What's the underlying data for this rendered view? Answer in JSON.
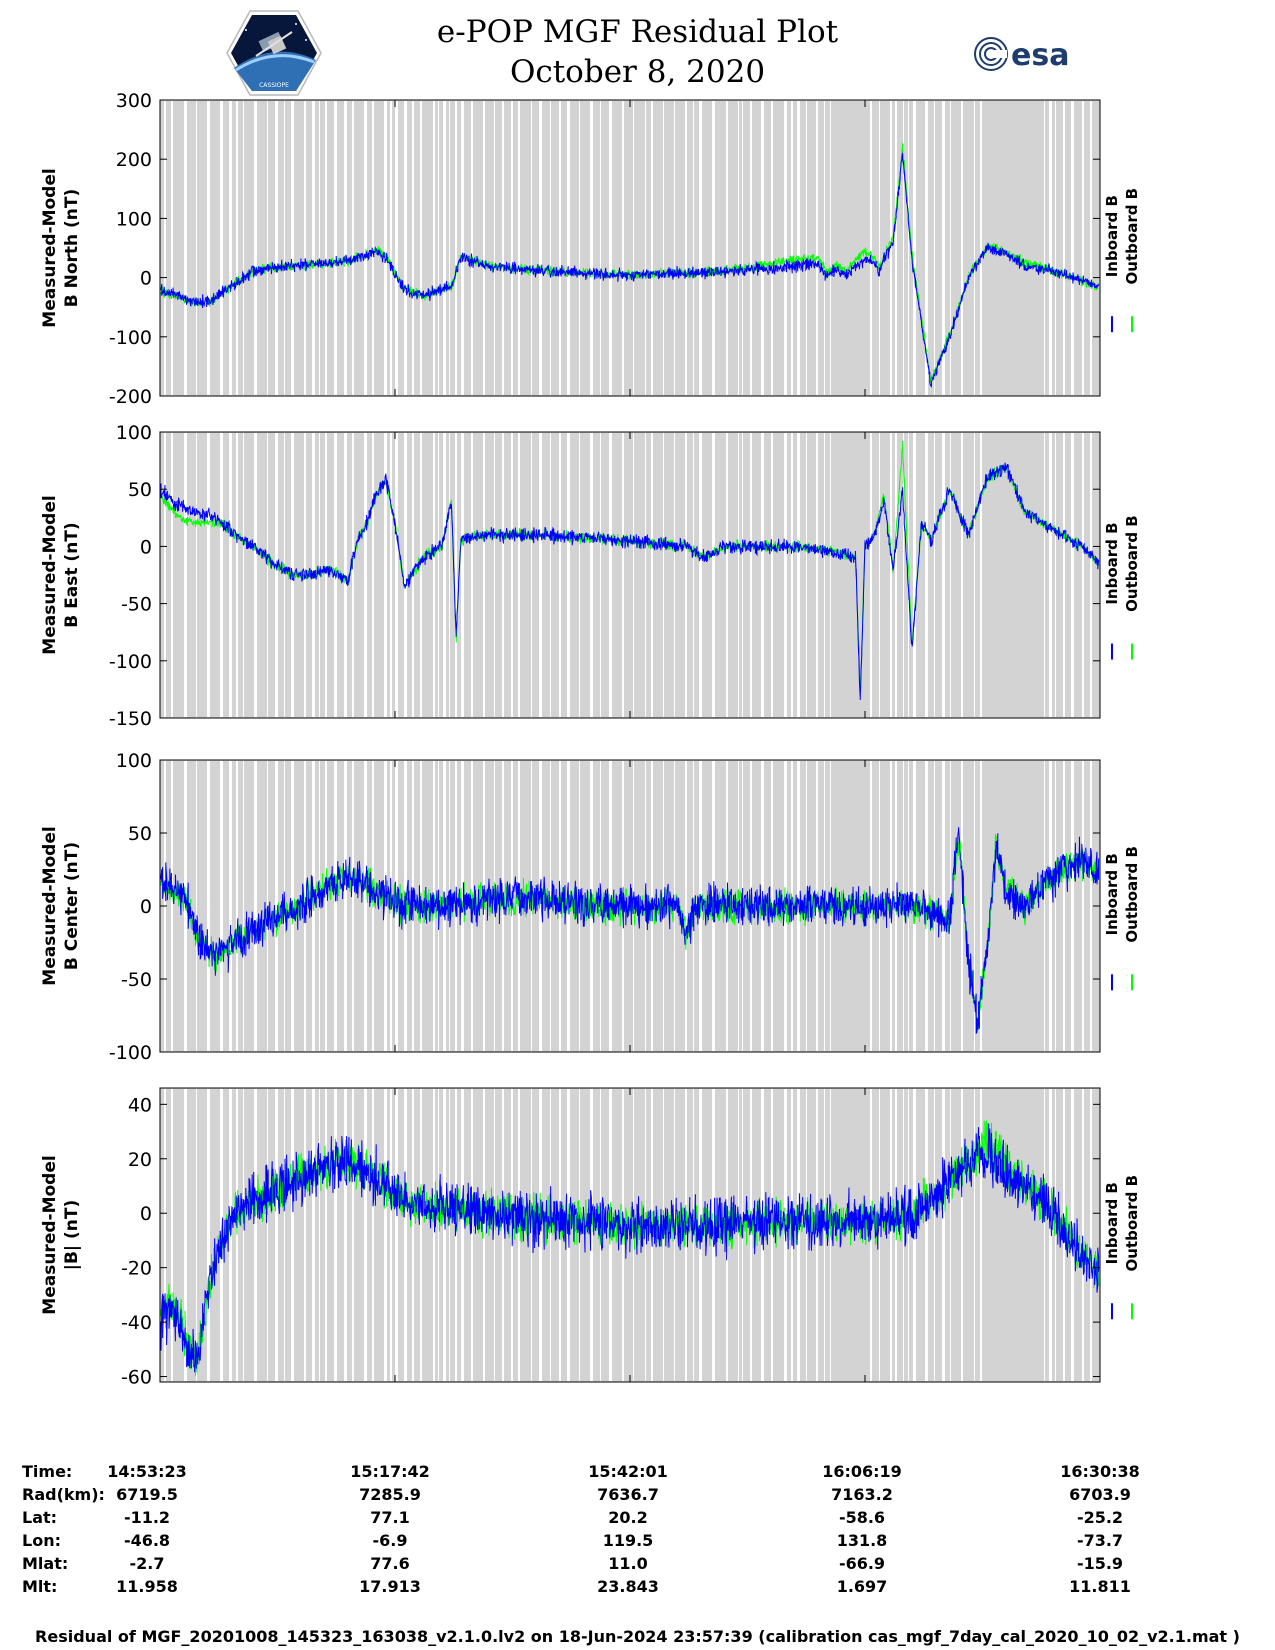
{
  "header": {
    "title_line1": "e-POP MGF Residual Plot",
    "title_line2": "October 8, 2020",
    "mission_logo_text": "CASSIOPE",
    "esa_logo_text": "esa"
  },
  "chart_data": [
    {
      "type": "line",
      "ylabel_line1": "Measured-Model",
      "ylabel_line2": "B North (nT)",
      "ylim": [
        -200,
        300
      ],
      "yticks": [
        -200,
        -100,
        0,
        100,
        200,
        300
      ],
      "xticks": [
        "14:53:23",
        "15:17:42",
        "15:42:01",
        "16:06:19",
        "16:30:38"
      ],
      "legend": [
        "Inboard B",
        "Outboard B"
      ],
      "legend_placement": "right",
      "series": [
        {
          "name": "Inboard B",
          "color": "#0000ff",
          "x": [
            0,
            1.5,
            3,
            5,
            8,
            10,
            12,
            15,
            20,
            23,
            24,
            26,
            28,
            30,
            31,
            32,
            35,
            40,
            48,
            52,
            56,
            60,
            64,
            68,
            70,
            71,
            72,
            73,
            74,
            75,
            76,
            76.5,
            77,
            78,
            79,
            80,
            82,
            84,
            86,
            88,
            90,
            92,
            94,
            96,
            98,
            100
          ],
          "y": [
            -20,
            -28,
            -38,
            -42,
            -10,
            12,
            18,
            20,
            28,
            45,
            35,
            -20,
            -30,
            -20,
            -15,
            35,
            20,
            12,
            5,
            5,
            8,
            10,
            15,
            20,
            25,
            0,
            15,
            5,
            20,
            30,
            25,
            10,
            30,
            60,
            210,
            30,
            -180,
            -100,
            0,
            50,
            40,
            20,
            15,
            5,
            -5,
            -15
          ]
        },
        {
          "name": "Outboard B",
          "color": "#00ff00",
          "x": [
            0,
            1.5,
            3,
            5,
            8,
            10,
            12,
            15,
            20,
            23,
            24,
            26,
            28,
            30,
            31,
            32,
            35,
            40,
            48,
            52,
            56,
            60,
            64,
            68,
            70,
            71,
            72,
            73,
            74,
            75,
            76,
            76.5,
            77,
            78,
            79,
            80,
            82,
            84,
            86,
            88,
            90,
            92,
            94,
            96,
            98,
            100
          ],
          "y": [
            -22,
            -30,
            -40,
            -44,
            -10,
            12,
            18,
            20,
            28,
            46,
            36,
            -20,
            -30,
            -20,
            -15,
            36,
            20,
            12,
            5,
            5,
            8,
            12,
            20,
            30,
            35,
            5,
            20,
            10,
            30,
            45,
            35,
            15,
            35,
            70,
            220,
            40,
            -175,
            -95,
            0,
            55,
            45,
            25,
            18,
            5,
            -5,
            -15
          ]
        }
      ]
    },
    {
      "type": "line",
      "ylabel_line1": "Measured-Model",
      "ylabel_line2": "B East (nT)",
      "ylim": [
        -150,
        100
      ],
      "yticks": [
        -150,
        -100,
        -50,
        0,
        50,
        100
      ],
      "xticks": [
        "14:53:23",
        "15:17:42",
        "15:42:01",
        "16:06:19",
        "16:30:38"
      ],
      "legend": [
        "Inboard B",
        "Outboard B"
      ],
      "legend_placement": "right",
      "series": [
        {
          "name": "Inboard B",
          "color": "#0000ff",
          "x": [
            0,
            2,
            4,
            6,
            8,
            10,
            12,
            14,
            16,
            18,
            19,
            20,
            21,
            22,
            23,
            24,
            25,
            26,
            28,
            30,
            31,
            31.5,
            32,
            34,
            40,
            50,
            56,
            58,
            60,
            64,
            68,
            72,
            74,
            74.5,
            75,
            76,
            77,
            78,
            79,
            80,
            81,
            82,
            84,
            86,
            88,
            90,
            92,
            94,
            96,
            98,
            100
          ],
          "y": [
            50,
            35,
            30,
            25,
            10,
            0,
            -15,
            -25,
            -25,
            -20,
            -25,
            -30,
            5,
            20,
            45,
            60,
            20,
            -35,
            -10,
            0,
            40,
            -80,
            5,
            10,
            10,
            5,
            0,
            -10,
            0,
            0,
            0,
            -5,
            -10,
            -135,
            0,
            10,
            40,
            -20,
            50,
            -90,
            20,
            5,
            50,
            10,
            60,
            70,
            30,
            20,
            10,
            0,
            -15
          ]
        },
        {
          "name": "Outboard B",
          "color": "#00ff00",
          "x": [
            0,
            2,
            4,
            6,
            8,
            10,
            12,
            14,
            16,
            18,
            19,
            20,
            21,
            22,
            23,
            24,
            25,
            26,
            28,
            30,
            31,
            31.5,
            32,
            34,
            40,
            50,
            56,
            58,
            60,
            64,
            68,
            72,
            74,
            74.5,
            75,
            76,
            77,
            78,
            79,
            80,
            81,
            82,
            84,
            86,
            88,
            90,
            92,
            94,
            96,
            98,
            100
          ],
          "y": [
            45,
            25,
            20,
            22,
            10,
            0,
            -15,
            -25,
            -25,
            -20,
            -25,
            -30,
            5,
            20,
            45,
            60,
            20,
            -35,
            -10,
            0,
            40,
            -80,
            5,
            10,
            10,
            5,
            0,
            -10,
            0,
            0,
            0,
            -5,
            -10,
            -130,
            0,
            10,
            45,
            -20,
            88,
            -85,
            20,
            5,
            50,
            10,
            60,
            70,
            30,
            20,
            10,
            0,
            -15
          ]
        }
      ]
    },
    {
      "type": "line",
      "ylabel_line1": "Measured-Model",
      "ylabel_line2": "B Center (nT)",
      "ylim": [
        -100,
        100
      ],
      "yticks": [
        -100,
        -50,
        0,
        50
      ],
      "ytick_labels_shown": [
        -100,
        -50,
        0,
        50,
        100
      ],
      "xticks": [
        "14:53:23",
        "15:17:42",
        "15:42:01",
        "16:06:19",
        "16:30:38"
      ],
      "legend": [
        "Inboard B",
        "Outboard B"
      ],
      "legend_placement": "right",
      "series": [
        {
          "name": "Inboard B",
          "color": "#0000ff",
          "x": [
            0,
            2,
            3,
            4,
            5,
            6,
            8,
            10,
            12,
            14,
            16,
            18,
            20,
            22,
            24,
            26,
            28,
            30,
            35,
            40,
            45,
            50,
            55,
            56,
            57,
            60,
            65,
            70,
            75,
            80,
            82,
            84,
            85,
            86,
            87,
            88,
            89,
            90,
            92,
            94,
            96,
            98,
            100
          ],
          "y": [
            15,
            10,
            0,
            -20,
            -30,
            -35,
            -25,
            -15,
            -10,
            -5,
            5,
            15,
            20,
            15,
            5,
            0,
            0,
            0,
            5,
            5,
            0,
            0,
            0,
            -20,
            0,
            0,
            0,
            0,
            0,
            0,
            -5,
            -10,
            50,
            -40,
            -80,
            -30,
            45,
            10,
            0,
            15,
            25,
            30,
            25
          ]
        },
        {
          "name": "Outboard B",
          "color": "#00ff00",
          "x": [
            0,
            2,
            3,
            4,
            5,
            6,
            8,
            10,
            12,
            14,
            16,
            18,
            20,
            22,
            24,
            26,
            28,
            30,
            35,
            40,
            45,
            50,
            55,
            56,
            57,
            60,
            65,
            70,
            75,
            80,
            82,
            84,
            85,
            86,
            87,
            88,
            89,
            90,
            92,
            94,
            96,
            98,
            100
          ],
          "y": [
            12,
            10,
            0,
            -20,
            -30,
            -35,
            -25,
            -15,
            -10,
            -5,
            5,
            15,
            20,
            15,
            5,
            0,
            0,
            0,
            5,
            5,
            0,
            0,
            0,
            -20,
            0,
            0,
            0,
            0,
            0,
            0,
            -5,
            -10,
            50,
            -40,
            -80,
            -30,
            45,
            10,
            0,
            15,
            25,
            30,
            25
          ]
        }
      ]
    },
    {
      "type": "line",
      "ylabel_line1": "Measured-Model",
      "ylabel_line2": "|B| (nT)",
      "ylim": [
        -62,
        46
      ],
      "yticks": [
        -60,
        -40,
        -20,
        0,
        20,
        40
      ],
      "xticks": [
        "14:53:23",
        "15:17:42",
        "15:42:01",
        "16:06:19",
        "16:30:38"
      ],
      "legend": [
        "Inboard B",
        "Outboard B"
      ],
      "legend_placement": "right",
      "series": [
        {
          "name": "Inboard B",
          "color": "#0000ff",
          "x": [
            0,
            1,
            2,
            3,
            4,
            5,
            6,
            8,
            10,
            12,
            14,
            16,
            18,
            20,
            22,
            24,
            26,
            28,
            30,
            35,
            40,
            45,
            50,
            52,
            55,
            60,
            65,
            70,
            75,
            78,
            80,
            82,
            84,
            86,
            88,
            90,
            92,
            94,
            96,
            98,
            100
          ],
          "y": [
            -40,
            -35,
            -40,
            -50,
            -55,
            -30,
            -15,
            0,
            5,
            8,
            12,
            15,
            18,
            20,
            15,
            10,
            5,
            3,
            2,
            0,
            -2,
            -3,
            -5,
            -5,
            -5,
            -5,
            -3,
            -3,
            -3,
            -2,
            0,
            5,
            12,
            18,
            22,
            15,
            10,
            5,
            -5,
            -15,
            -22
          ]
        },
        {
          "name": "Outboard B",
          "color": "#00ff00",
          "x": [
            0,
            1,
            2,
            3,
            4,
            5,
            6,
            8,
            10,
            12,
            14,
            16,
            18,
            20,
            22,
            24,
            26,
            28,
            30,
            35,
            40,
            45,
            50,
            52,
            55,
            60,
            65,
            70,
            75,
            78,
            80,
            82,
            84,
            86,
            88,
            90,
            92,
            94,
            96,
            98,
            100
          ],
          "y": [
            -37,
            -33,
            -38,
            -50,
            -55,
            -30,
            -15,
            0,
            5,
            8,
            12,
            15,
            18,
            20,
            15,
            10,
            5,
            3,
            2,
            0,
            -2,
            -3,
            -5,
            -5,
            -5,
            -5,
            -3,
            -3,
            -3,
            -2,
            0,
            5,
            12,
            20,
            25,
            18,
            10,
            5,
            -5,
            -15,
            -22
          ]
        }
      ]
    }
  ],
  "plot_style": {
    "background": "#d3d3d3",
    "gap_color": "#ffffff",
    "inboard_color": "#0000ff",
    "outboard_color": "#00ff00",
    "x_range": [
      0,
      100
    ]
  },
  "info_table": {
    "rows": [
      {
        "label": "Time:",
        "values": [
          "14:53:23",
          "15:17:42",
          "15:42:01",
          "16:06:19",
          "16:30:38"
        ]
      },
      {
        "label": "Rad(km):",
        "values": [
          "6719.5",
          "7285.9",
          "7636.7",
          "7163.2",
          "6703.9"
        ]
      },
      {
        "label": "Lat:",
        "values": [
          "-11.2",
          "77.1",
          "20.2",
          "-58.6",
          "-25.2"
        ]
      },
      {
        "label": "Lon:",
        "values": [
          "-46.8",
          "-6.9",
          "119.5",
          "131.8",
          "-73.7"
        ]
      },
      {
        "label": "Mlat:",
        "values": [
          "-2.7",
          "77.6",
          "11.0",
          "-66.9",
          "-15.9"
        ]
      },
      {
        "label": "Mlt:",
        "values": [
          "11.958",
          "17.913",
          "23.843",
          "1.697",
          "11.811"
        ]
      }
    ]
  },
  "footer": {
    "text": "Residual of MGF_20201008_145323_163038_v2.1.0.lv2 on 18-Jun-2024 23:57:39 (calibration cas_mgf_7day_cal_2020_10_02_v2.1.mat )"
  }
}
